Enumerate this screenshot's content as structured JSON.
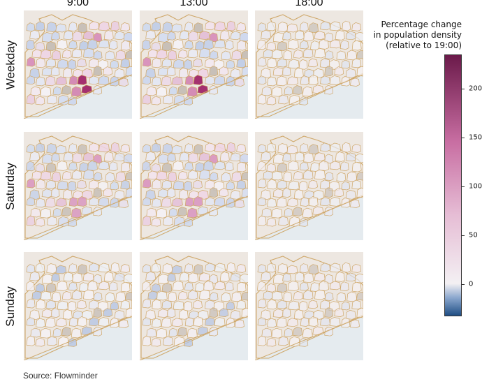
{
  "columns": [
    "9:00",
    "13:00",
    "18:00"
  ],
  "rows": [
    "Weekday",
    "Saturday",
    "Sunday"
  ],
  "legend": {
    "title_line1": "Percentage change",
    "title_line2": "in population density",
    "title_line3": "(relative to 19:00)",
    "ticks": [
      "0",
      "50",
      "100",
      "150",
      "200"
    ],
    "tick_values": [
      0,
      50,
      100,
      150,
      200
    ],
    "range": [
      -33,
      235
    ],
    "colors": {
      "low": "#1f4e84",
      "mid": "#f3f0f3",
      "high": "#6b1a4a"
    }
  },
  "map_style": {
    "land": "#ede7e1",
    "sea": "#e5ebef",
    "boundary": "#cfa86a"
  },
  "source": "Source: Flowminder"
}
